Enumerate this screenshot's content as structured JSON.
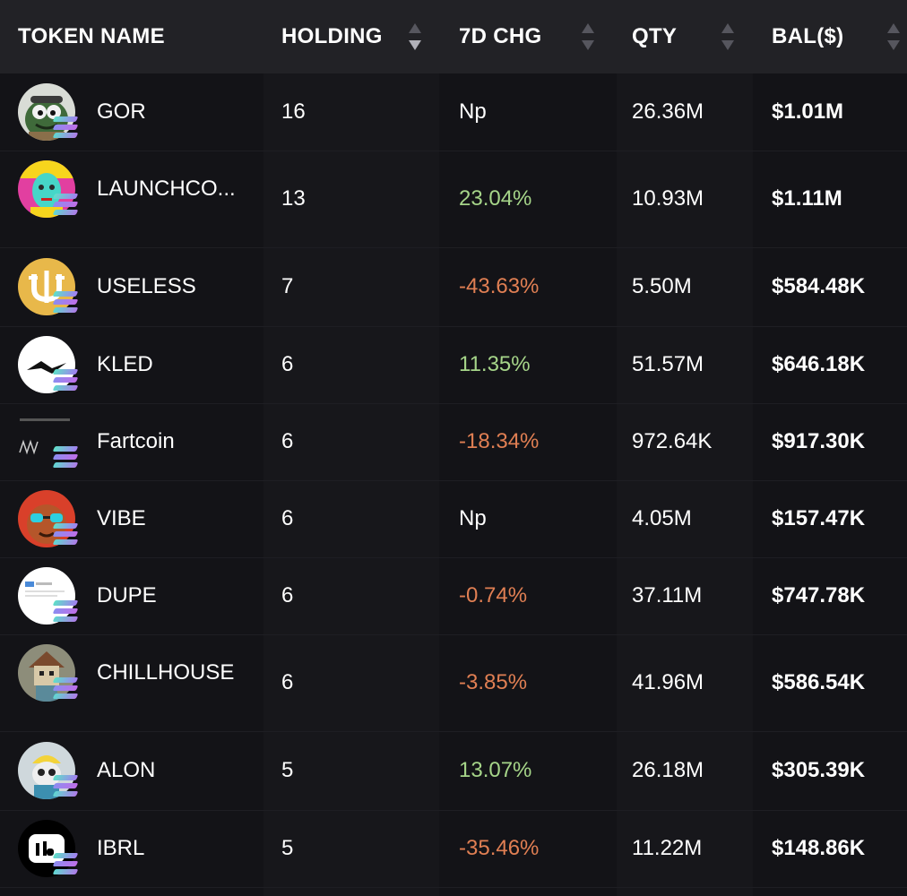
{
  "header": {
    "token_name": "TOKEN NAME",
    "holding": "HOLDING",
    "chg_7d": "7D CHG",
    "qty": "QTY",
    "bal": "BAL($)"
  },
  "colors": {
    "positive": "#a6d589",
    "negative": "#e07f53",
    "background": "#131317",
    "header_background": "#222226"
  },
  "rows": [
    {
      "name": "GOR",
      "holding": "16",
      "chg": "Np",
      "trend": "neutral",
      "qty": "26.36M",
      "bal": "$1.01M",
      "avatar_icon": "green-monster-avatar"
    },
    {
      "name": "LAUNCHCO...",
      "holding": "13",
      "chg": "23.04%",
      "trend": "positive",
      "qty": "10.93M",
      "bal": "$1.11M",
      "avatar_icon": "neon-face-avatar"
    },
    {
      "name": "USELESS",
      "holding": "7",
      "chg": "-43.63%",
      "trend": "negative",
      "qty": "5.50M",
      "bal": "$584.48K",
      "avatar_icon": "gold-coin-avatar"
    },
    {
      "name": "KLED",
      "holding": "6",
      "chg": "11.35%",
      "trend": "positive",
      "qty": "51.57M",
      "bal": "$646.18K",
      "avatar_icon": "wave-logo-avatar"
    },
    {
      "name": "Fartcoin",
      "holding": "6",
      "chg": "-18.34%",
      "trend": "negative",
      "qty": "972.64K",
      "bal": "$917.30K",
      "avatar_icon": "fartcoin-avatar"
    },
    {
      "name": "VIBE",
      "holding": "6",
      "chg": "Np",
      "trend": "neutral",
      "qty": "4.05M",
      "bal": "$157.47K",
      "avatar_icon": "cat-sunglasses-avatar"
    },
    {
      "name": "DUPE",
      "holding": "6",
      "chg": "-0.74%",
      "trend": "negative",
      "qty": "37.11M",
      "bal": "$747.78K",
      "avatar_icon": "screenshot-avatar"
    },
    {
      "name": "CHILLHOUSE",
      "holding": "6",
      "chg": "-3.85%",
      "trend": "negative",
      "qty": "41.96M",
      "bal": "$586.54K",
      "avatar_icon": "house-character-avatar"
    },
    {
      "name": "ALON",
      "holding": "5",
      "chg": "13.07%",
      "trend": "positive",
      "qty": "26.18M",
      "bal": "$305.39K",
      "avatar_icon": "hardhat-character-avatar"
    },
    {
      "name": "IBRL",
      "holding": "5",
      "chg": "-35.46%",
      "trend": "negative",
      "qty": "11.22M",
      "bal": "$148.86K",
      "avatar_icon": "ibrl-logo-avatar"
    }
  ]
}
